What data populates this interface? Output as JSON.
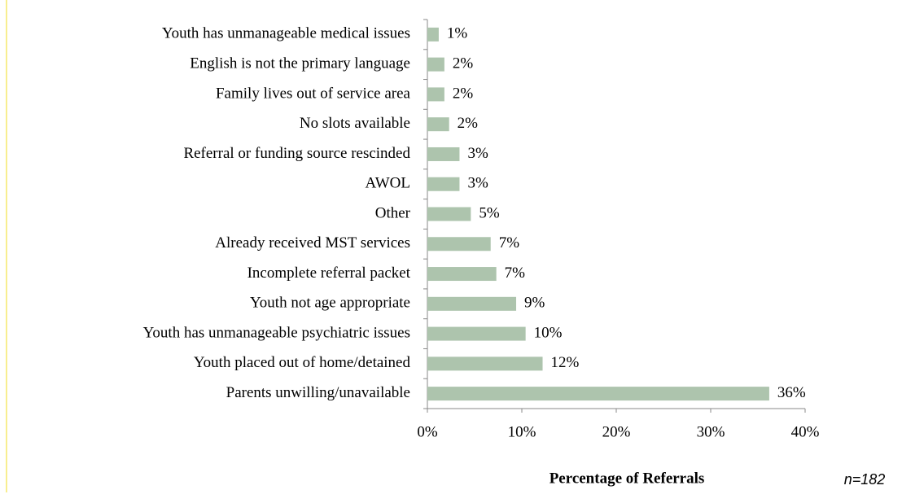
{
  "chart_data": {
    "type": "bar",
    "orientation": "horizontal",
    "categories": [
      "Youth has unmanageable medical issues",
      "English is not the primary language",
      "Family lives out of service area",
      "No slots available",
      "Referral or funding source rescinded",
      "AWOL",
      "Other",
      "Already received MST services",
      "Incomplete referral packet",
      "Youth not age appropriate",
      "Youth has unmanageable psychiatric issues",
      "Youth placed out of home/detained",
      "Parents unwilling/unavailable"
    ],
    "values": [
      1.2,
      1.8,
      1.8,
      2.3,
      3.4,
      3.4,
      4.6,
      6.7,
      7.3,
      9.4,
      10.4,
      12.2,
      36.2
    ],
    "value_labels": [
      "1%",
      "2%",
      "2%",
      "2%",
      "3%",
      "3%",
      "5%",
      "7%",
      "7%",
      "9%",
      "10%",
      "12%",
      "36%"
    ],
    "color": "#adc4ad",
    "xlabel": "Percentage of Referrals",
    "annotation": "n=182",
    "xlim": [
      0,
      40
    ],
    "xticks": [
      {
        "value": 0,
        "label": "0%"
      },
      {
        "value": 10,
        "label": "10%"
      },
      {
        "value": 20,
        "label": "20%"
      },
      {
        "value": 30,
        "label": "30%"
      },
      {
        "value": 40,
        "label": "40%"
      }
    ],
    "grid": false
  }
}
